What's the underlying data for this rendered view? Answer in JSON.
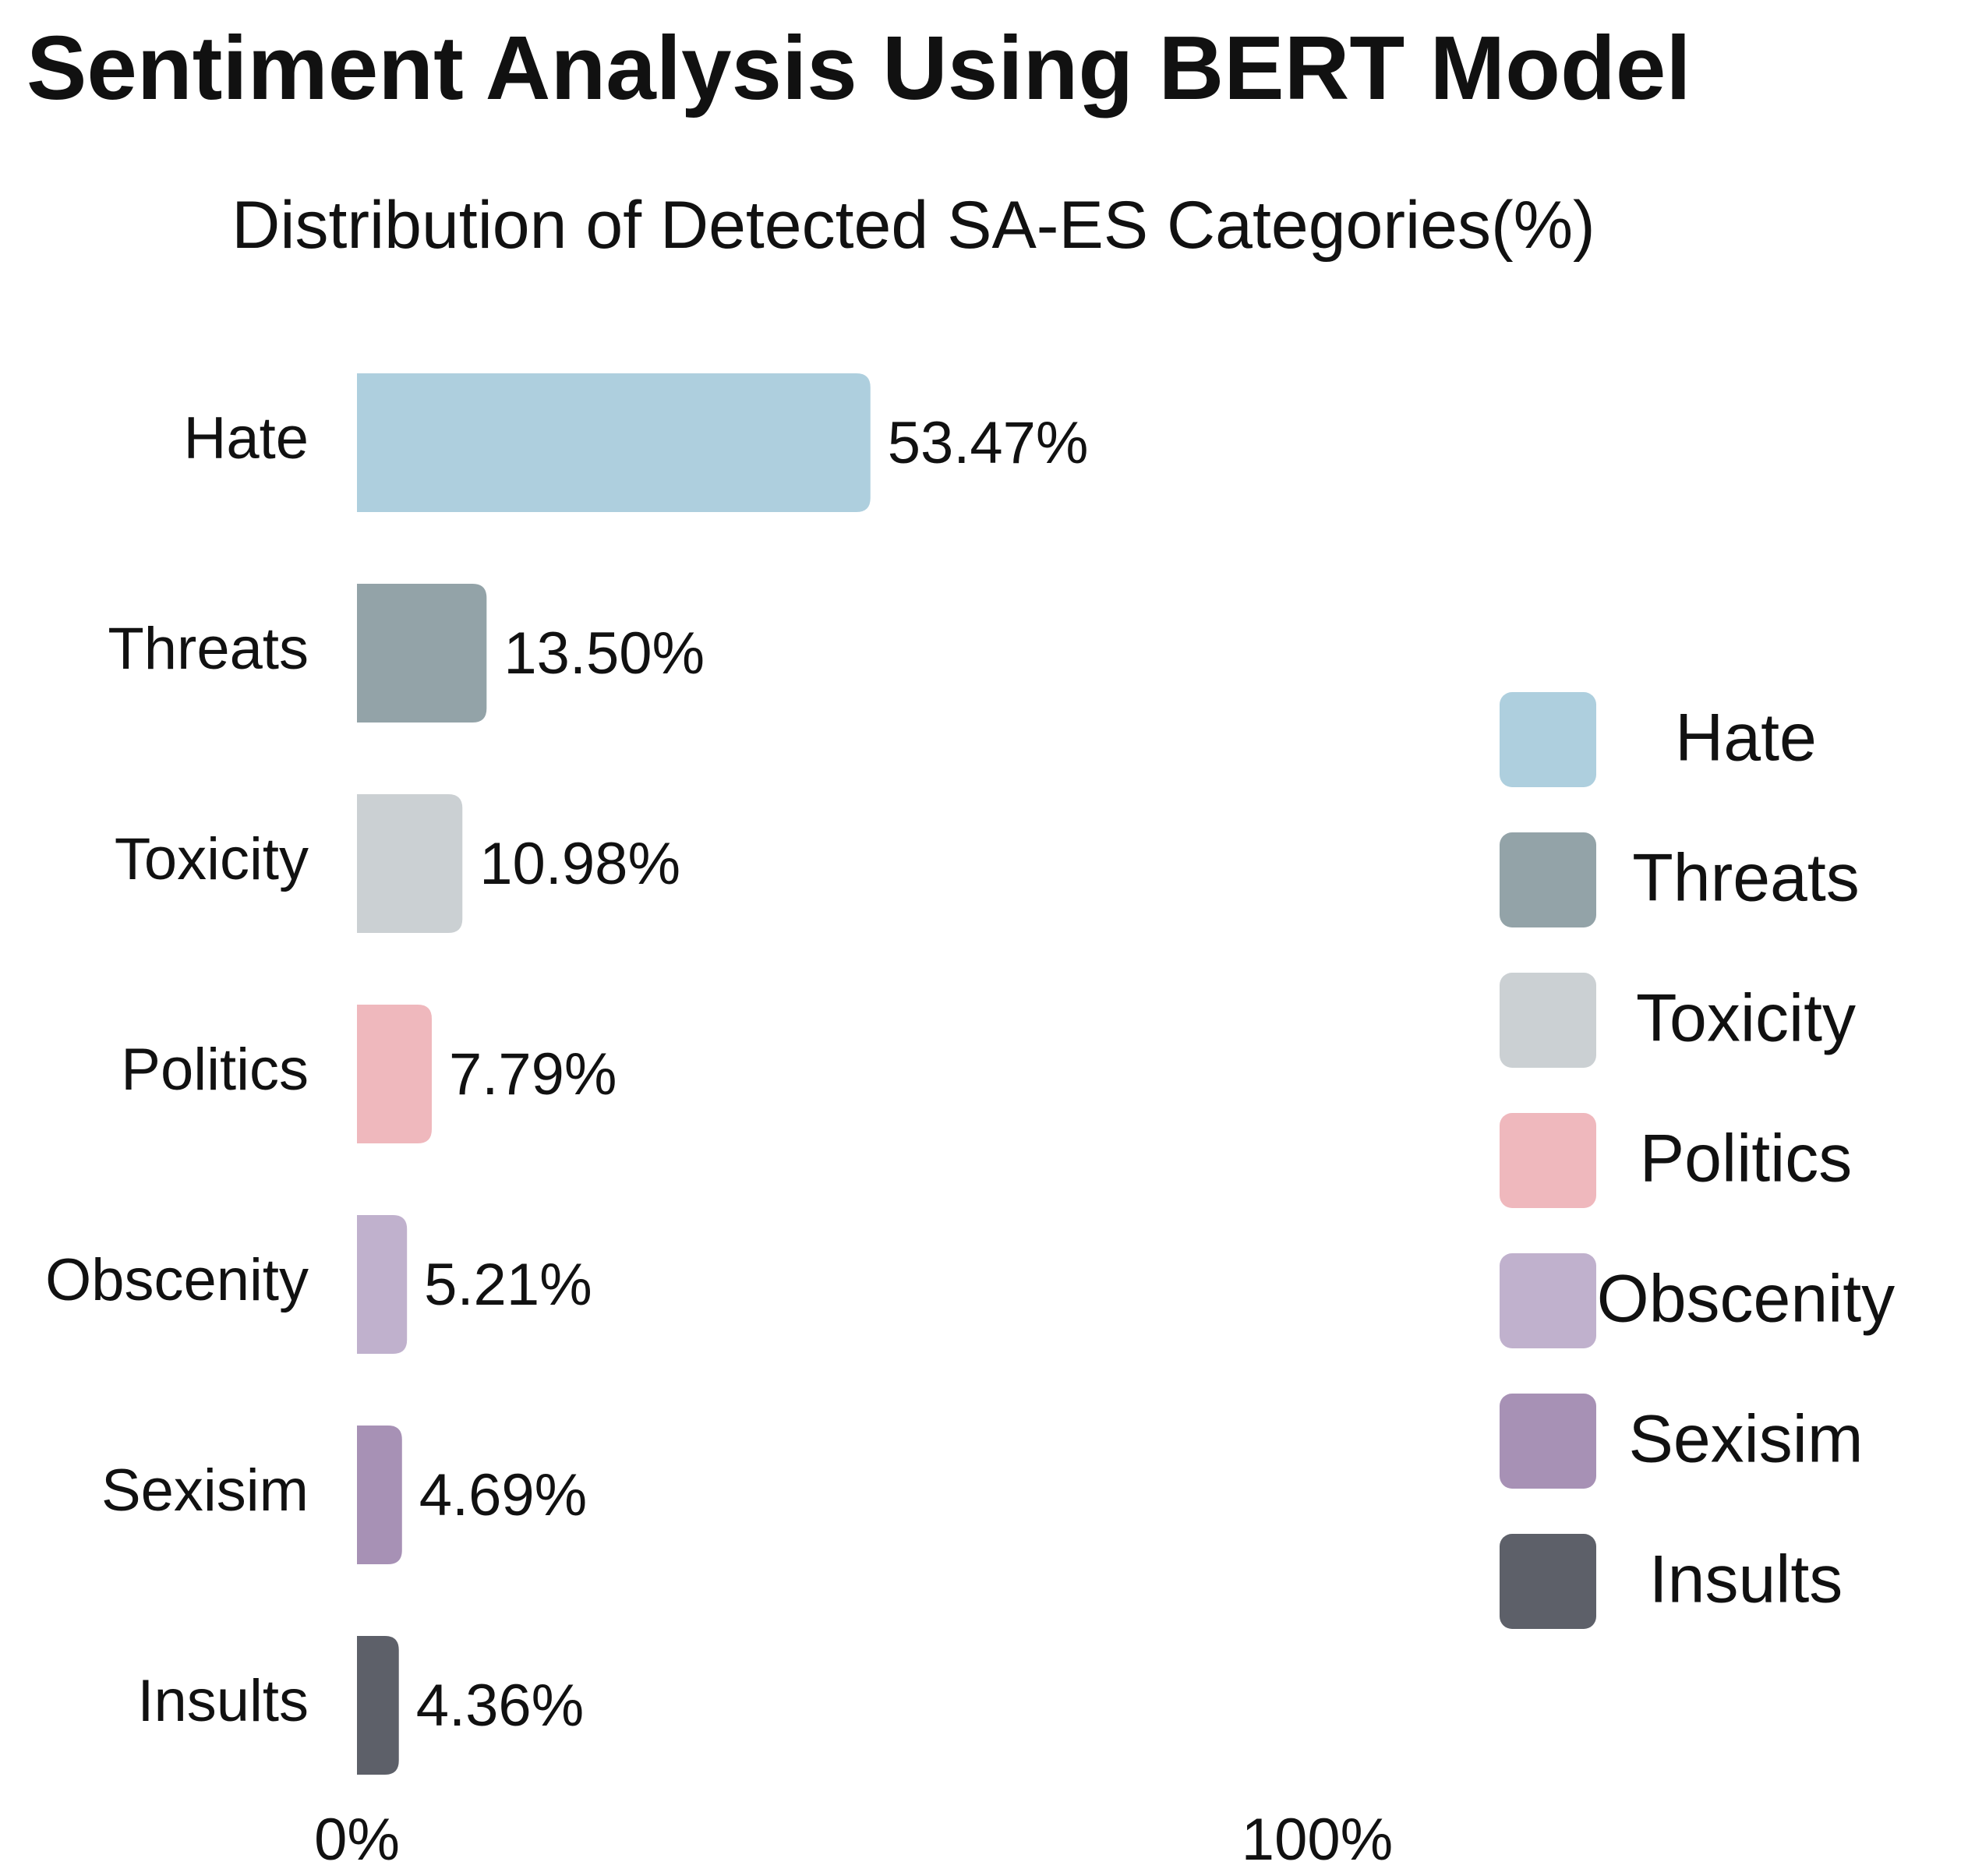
{
  "header": {
    "title": "Sentiment Analysis Using BERT Model"
  },
  "chart_data": {
    "type": "bar",
    "orientation": "horizontal",
    "title": "Distribution of Detected SA-ES Categories(%)",
    "categories": [
      "Hate",
      "Threats",
      "Toxicity",
      "Politics",
      "Obscenity",
      "Sexisim",
      "Insults"
    ],
    "values": [
      53.47,
      13.5,
      10.98,
      7.79,
      5.21,
      4.69,
      4.36
    ],
    "value_labels": [
      "53.47%",
      "13.50%",
      "10.98%",
      "7.79%",
      "5.21%",
      "4.69%",
      "4.36%"
    ],
    "colors": [
      "#aecfde",
      "#93a3a8",
      "#cbd0d3",
      "#efb8bd",
      "#c0b1cd",
      "#a791b5",
      "#5d6069"
    ],
    "xlim": [
      0,
      100
    ],
    "xticks": [
      0,
      100
    ],
    "xtick_labels": [
      "0%",
      "100%"
    ],
    "xlabel": "",
    "ylabel": "",
    "grid": false,
    "legend": {
      "position": "right",
      "entries": [
        "Hate",
        "Threats",
        "Toxicity",
        "Politics",
        "Obscenity",
        "Sexisim",
        "Insults"
      ]
    }
  }
}
